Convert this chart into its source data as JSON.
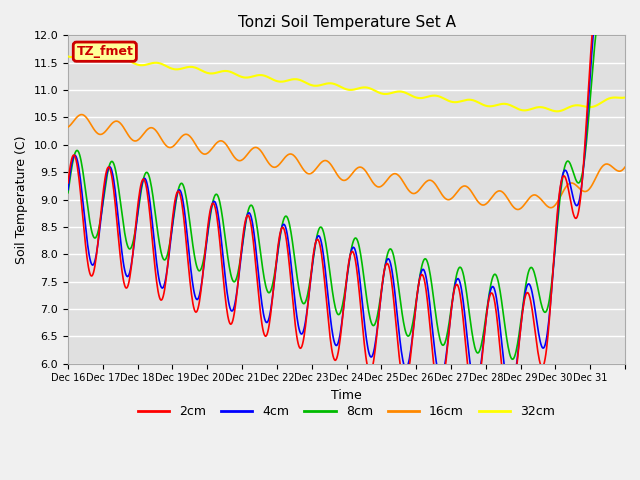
{
  "title": "Tonzi Soil Temperature Set A",
  "xlabel": "Time",
  "ylabel": "Soil Temperature (C)",
  "ylim": [
    6.0,
    12.0
  ],
  "yticks": [
    6.0,
    6.5,
    7.0,
    7.5,
    8.0,
    8.5,
    9.0,
    9.5,
    10.0,
    10.5,
    11.0,
    11.5,
    12.0
  ],
  "xtick_labels": [
    "Dec 16",
    "Dec 17",
    "Dec 18",
    "Dec 19",
    "Dec 20",
    "Dec 21",
    "Dec 22",
    "Dec 23",
    "Dec 24",
    "Dec 25",
    "Dec 26",
    "Dec 27",
    "Dec 28",
    "Dec 29",
    "Dec 30",
    "Dec 31"
  ],
  "legend_labels": [
    "2cm",
    "4cm",
    "8cm",
    "16cm",
    "32cm"
  ],
  "line_colors": [
    "#ff0000",
    "#0000ff",
    "#00bb00",
    "#ff8800",
    "#ffff00"
  ],
  "fig_bg_color": "#f0f0f0",
  "ax_bg_color": "#e0e0e0",
  "grid_color": "#ffffff",
  "annotation_text": "TZ_fmet",
  "annotation_bg": "#ffff99",
  "annotation_border": "#cc0000",
  "annotation_text_color": "#cc0000",
  "n_days": 16,
  "pts_per_day": 48
}
